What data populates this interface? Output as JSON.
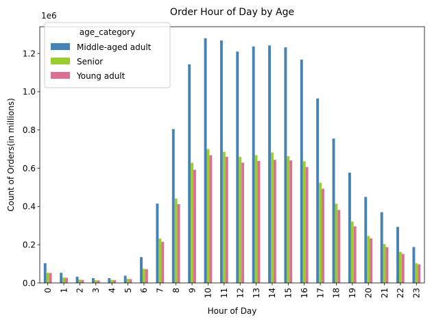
{
  "chart_data": {
    "type": "bar",
    "title": "Order Hour of Day by Age",
    "xlabel": "Hour of Day",
    "ylabel": "Count of Orders(in millions)",
    "offset_text": "1e6",
    "categories": [
      "0",
      "1",
      "2",
      "3",
      "4",
      "5",
      "6",
      "7",
      "8",
      "9",
      "10",
      "11",
      "12",
      "13",
      "14",
      "15",
      "16",
      "17",
      "18",
      "19",
      "20",
      "21",
      "22",
      "23"
    ],
    "ylim": [
      0,
      1340000
    ],
    "yticks": [
      0,
      200000,
      400000,
      600000,
      800000,
      1000000,
      1200000
    ],
    "ytick_labels": [
      "0.0",
      "0.2",
      "0.4",
      "0.6",
      "0.8",
      "1.0",
      "1.2"
    ],
    "grid": false,
    "legend": {
      "title": "age_category",
      "position": "top-left"
    },
    "series": [
      {
        "name": "Middle-aged adult",
        "color": "#4682b4",
        "values": [
          103000,
          53000,
          33000,
          25000,
          25000,
          38000,
          135000,
          415000,
          805000,
          1143000,
          1280000,
          1268000,
          1210000,
          1237000,
          1242000,
          1232000,
          1168000,
          965000,
          755000,
          577000,
          450000,
          370000,
          293000,
          188000
        ]
      },
      {
        "name": "Senior",
        "color": "#9acd32",
        "values": [
          53000,
          28000,
          17000,
          14000,
          16000,
          21000,
          74000,
          232000,
          441000,
          628000,
          700000,
          686000,
          659000,
          668000,
          682000,
          663000,
          636000,
          524000,
          414000,
          321000,
          246000,
          203000,
          163000,
          103000
        ]
      },
      {
        "name": "Young adult",
        "color": "#db7093",
        "values": [
          52000,
          27000,
          16000,
          13000,
          15000,
          20000,
          72000,
          215000,
          412000,
          592000,
          668000,
          660000,
          629000,
          638000,
          644000,
          641000,
          606000,
          493000,
          382000,
          296000,
          233000,
          187000,
          152000,
          97000
        ]
      }
    ]
  }
}
